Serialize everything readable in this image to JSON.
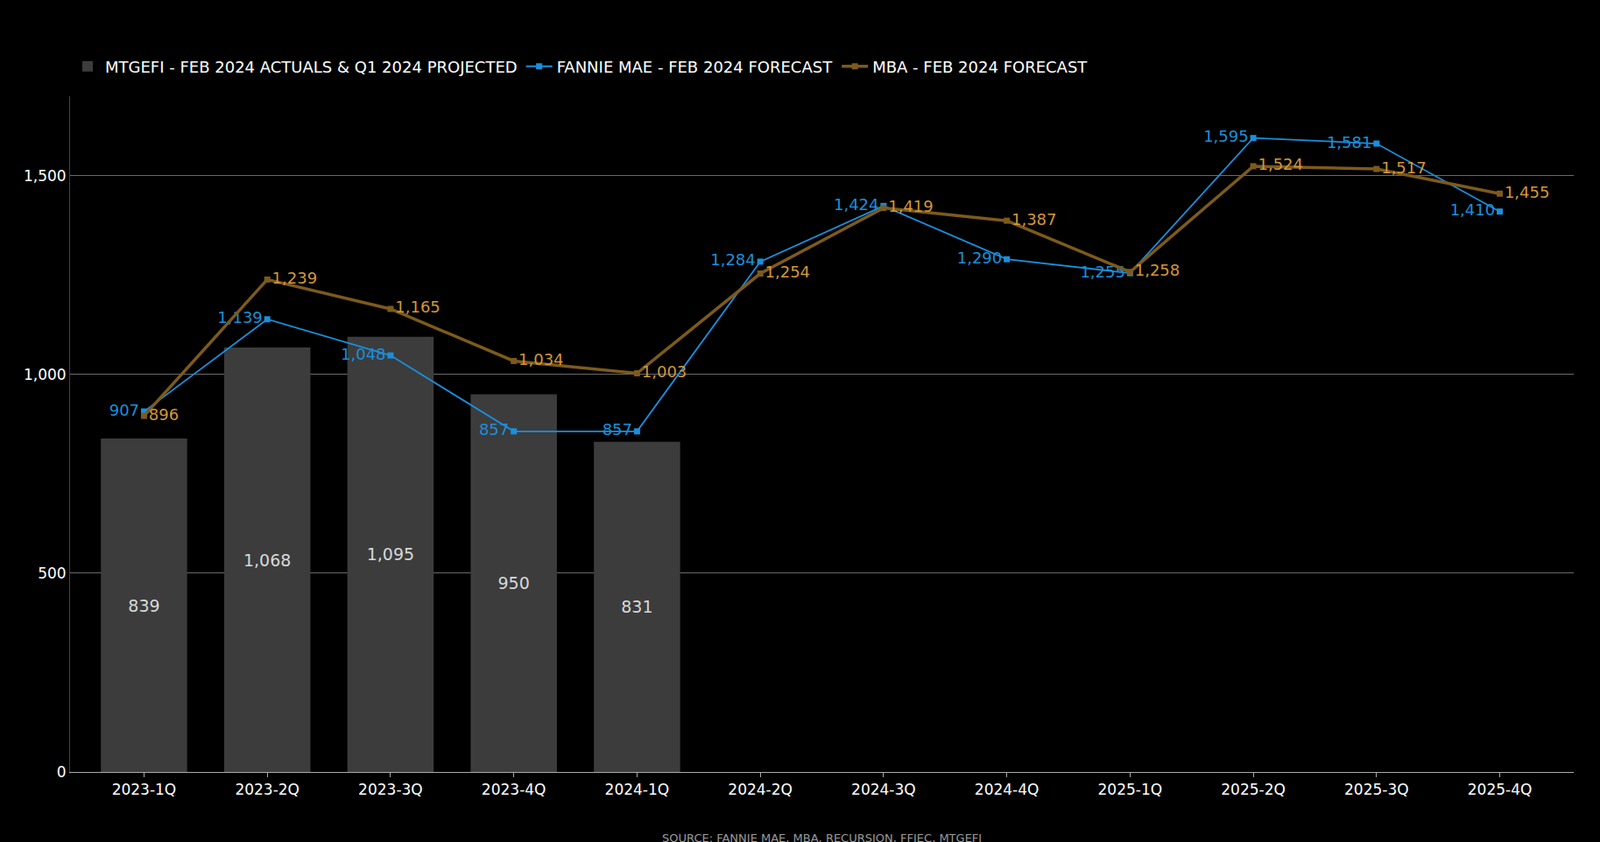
{
  "chart_data": {
    "type": "bar",
    "categories": [
      "2023-1Q",
      "2023-2Q",
      "2023-3Q",
      "2023-4Q",
      "2024-1Q",
      "2024-2Q",
      "2024-3Q",
      "2024-4Q",
      "2025-1Q",
      "2025-2Q",
      "2025-3Q",
      "2025-4Q"
    ],
    "series": [
      {
        "name": "MTGEFI - FEB 2024 ACTUALS & Q1 2024 PROJECTED",
        "type": "bar",
        "color": "#3c3c3c",
        "values": [
          839,
          1068,
          1095,
          950,
          831,
          null,
          null,
          null,
          null,
          null,
          null,
          null
        ],
        "value_labels": [
          "839",
          "1,068",
          "1,095",
          "950",
          "831",
          null,
          null,
          null,
          null,
          null,
          null,
          null
        ]
      },
      {
        "name": "FANNIE MAE - FEB 2024 FORECAST",
        "type": "line",
        "color": "#1a8fdc",
        "marker": "square",
        "line_style": "solid",
        "values": [
          907,
          1139,
          1048,
          857,
          857,
          1284,
          1424,
          1290,
          1255,
          1595,
          1581,
          1410
        ],
        "value_labels": [
          "907",
          "1,139",
          "1,048",
          "857",
          "857",
          "1,284",
          "1,424",
          "1,290",
          "1,255",
          "1,595",
          "1,581",
          "1,410"
        ]
      },
      {
        "name": "MBA - FEB 2024 FORECAST",
        "type": "line",
        "color": "#7d5a1c",
        "marker": "square",
        "line_style": "solid",
        "values": [
          896,
          1239,
          1165,
          1034,
          1003,
          1254,
          1419,
          1387,
          1258,
          1524,
          1517,
          1455
        ],
        "value_labels": [
          "896",
          "1,239",
          "1,165",
          "1,034",
          "1,003",
          "1,254",
          "1,419",
          "1,387",
          "1,258",
          "1,524",
          "1,517",
          "1,455"
        ]
      }
    ],
    "ylim": [
      0,
      1700
    ],
    "yticks": [
      0,
      500,
      {
        "value": 1000,
        "label": "1,000"
      },
      {
        "value": 1500,
        "label": "1,500"
      }
    ],
    "grid": true,
    "legend": "top left",
    "data_labels": true,
    "annotations": [
      "SOURCE: FANNIE MAE, MBA, RECURSION, FFIEC, MTGEFI"
    ]
  }
}
